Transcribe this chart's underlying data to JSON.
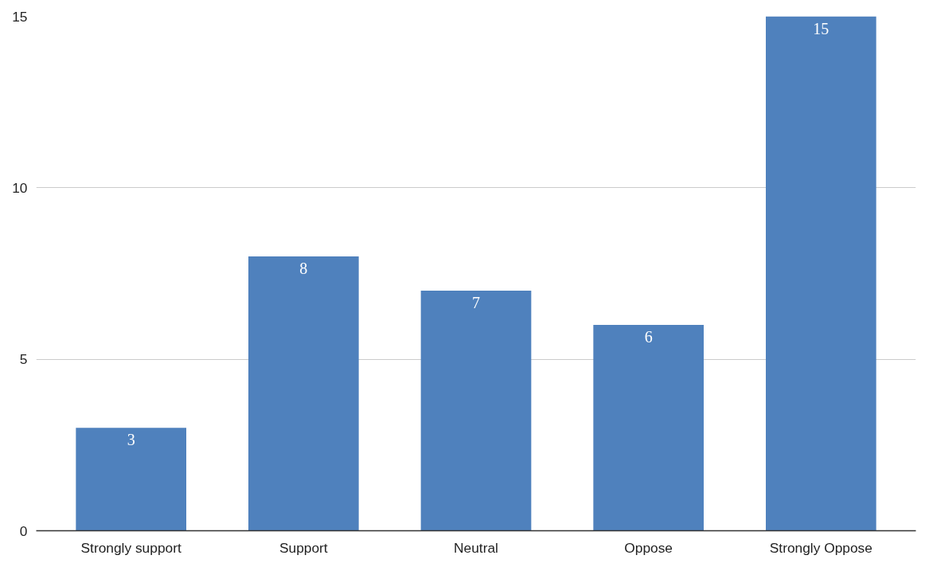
{
  "chart_data": {
    "type": "bar",
    "categories": [
      "Strongly support",
      "Support",
      "Neutral",
      "Oppose",
      "Strongly Oppose"
    ],
    "values": [
      3,
      8,
      7,
      6,
      15
    ],
    "color": "#4f81bd",
    "ylim": [
      0,
      15
    ],
    "yticks": [
      0,
      5,
      10,
      15
    ],
    "grid": "y",
    "data_labels": true
  }
}
